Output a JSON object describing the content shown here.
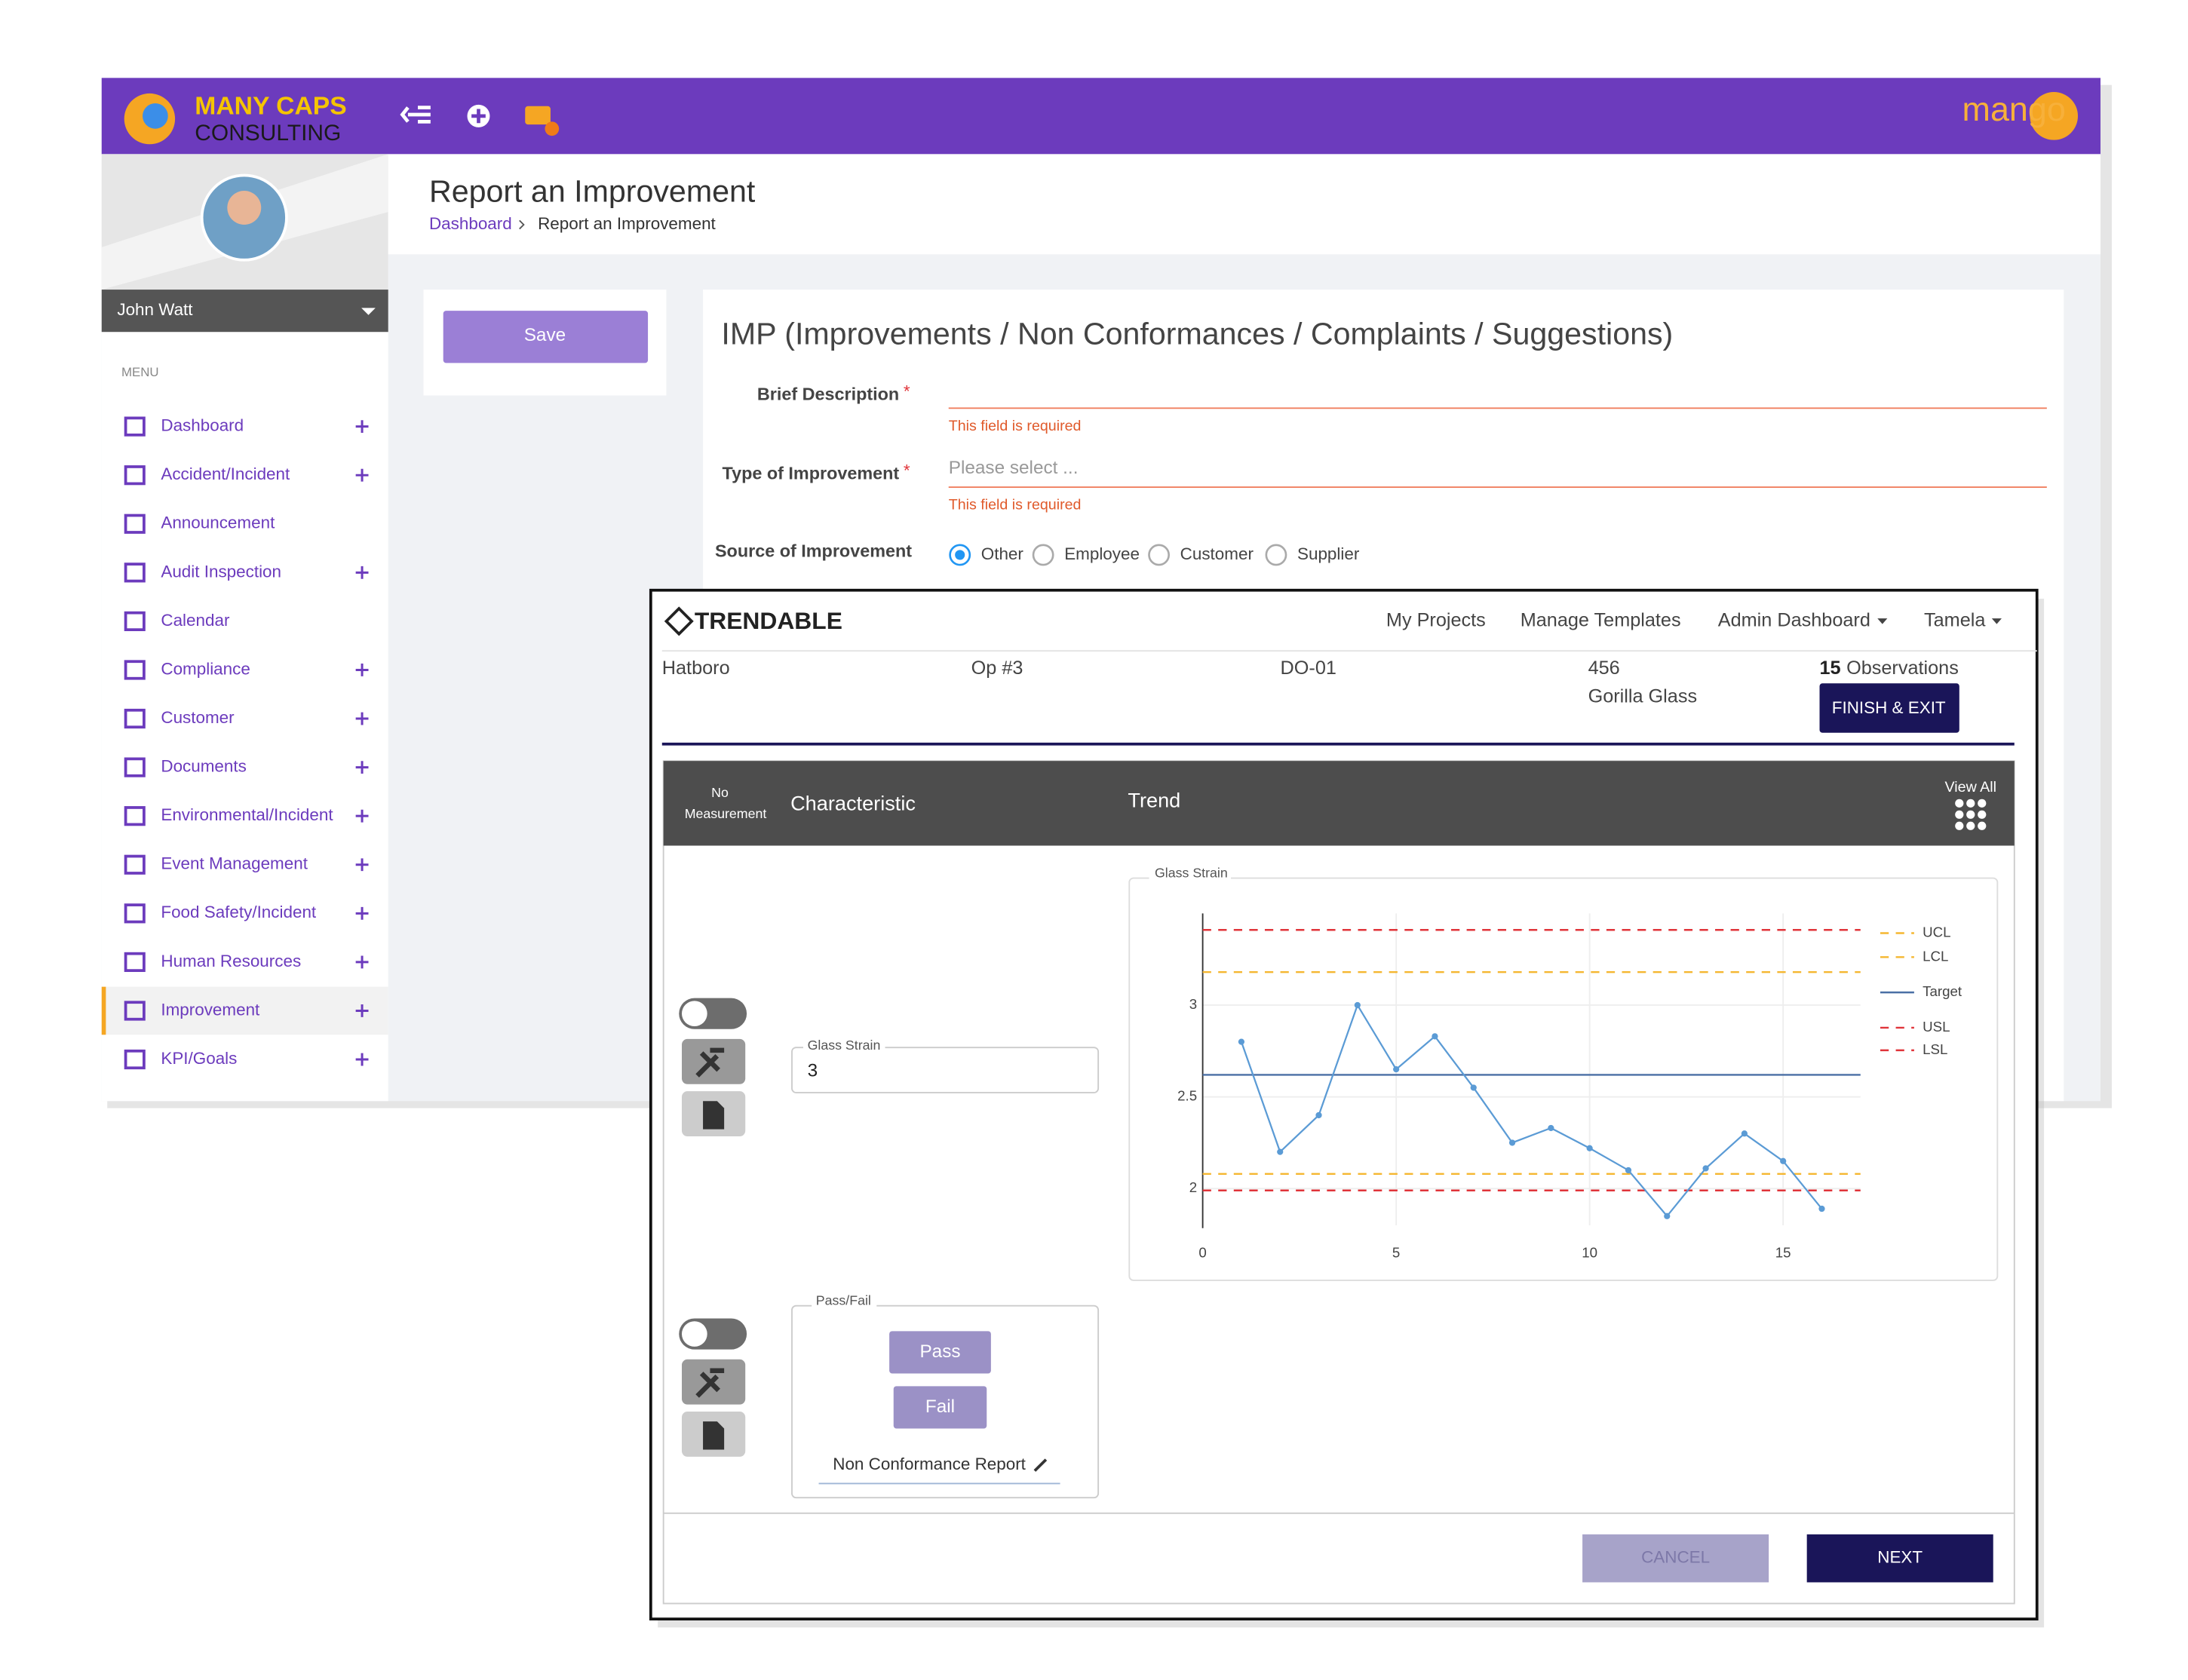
{
  "header": {
    "logo_line1": "MANY CAPS",
    "logo_line2": "CONSULTING",
    "brand": "mango"
  },
  "sidebar": {
    "user": "John Watt",
    "menu_label": "MENU",
    "items": [
      "Dashboard",
      "Accident/Incident",
      "Announcement",
      "Audit Inspection",
      "Calendar",
      "Compliance",
      "Customer",
      "Documents",
      "Environmental/Incident",
      "Event Management",
      "Food Safety/Incident",
      "Human Resources",
      "Improvement",
      "KPI/Goals"
    ]
  },
  "page": {
    "title": "Report an Improvement",
    "breadcrumb": [
      "Dashboard",
      "Report an Improvement"
    ],
    "save": "Save"
  },
  "form": {
    "title": "IMP (Improvements / Non Conformances / Complaints / Suggestions)",
    "fields": [
      {
        "label": "Brief Description",
        "required": "*",
        "error": "This field is required"
      },
      {
        "label": "Type of Improvement",
        "required": "*",
        "placeholder": "Please select ...",
        "error": "This field is required"
      },
      {
        "label": "Source of Improvement",
        "options": [
          "Other",
          "Employee",
          "Customer",
          "Supplier"
        ]
      }
    ]
  },
  "trendable": {
    "brand": "TRENDABLE",
    "nav": [
      "My Projects",
      "Manage Templates",
      "Admin Dashboard",
      "Tamela"
    ],
    "info": [
      "Hatboro",
      "Op #3",
      "DO-01",
      "456",
      "Gorilla Glass"
    ],
    "observations_count": 15,
    "observations_label": "Observations",
    "finish": "FINISH & EXIT",
    "table_header": {
      "no_measurement": [
        "No",
        "Measurement"
      ],
      "characteristic": "Characteristic",
      "trend": "Trend",
      "view_all": "View All"
    },
    "measurement": {
      "label": "Glass Strain",
      "value": "3"
    },
    "passfail": {
      "label": "Pass/Fail",
      "pass": "Pass",
      "fail": "Fail",
      "report": "Non Conformance Report"
    },
    "buttons": {
      "cancel": "CANCEL",
      "next": "NEXT"
    },
    "chart": {
      "type": "line",
      "title": "Glass Strain",
      "x": [
        1,
        2,
        3,
        4,
        5,
        6,
        7,
        8,
        9,
        10,
        11,
        12,
        13,
        14,
        15,
        16
      ],
      "series": [
        {
          "color": "#5b9bd5",
          "values": [
            2.8,
            2.2,
            2.4,
            3.0,
            2.65,
            2.83,
            2.55,
            2.25,
            2.33,
            2.22,
            2.1,
            1.85,
            2.11,
            2.3,
            2.15,
            1.89
          ]
        }
      ],
      "limits": [
        {
          "name": "UCL",
          "value": 3.18,
          "color": "#f5b731",
          "dash": true
        },
        {
          "name": "LCL",
          "value": 2.08,
          "color": "#f5b731",
          "dash": true
        },
        {
          "name": "Target",
          "value": 2.62,
          "color": "#4a6fa5",
          "dash": false
        },
        {
          "name": "USL",
          "value": 3.41,
          "color": "#e0343a",
          "dash": true
        },
        {
          "name": "LSL",
          "value": 1.99,
          "color": "#e0343a",
          "dash": true
        }
      ],
      "xlim": [
        0,
        17
      ],
      "ylim": [
        1.8,
        3.5
      ],
      "xticks": [
        0,
        5,
        10,
        15
      ],
      "yticks": [
        2,
        2.5,
        3
      ],
      "grid": true
    }
  }
}
